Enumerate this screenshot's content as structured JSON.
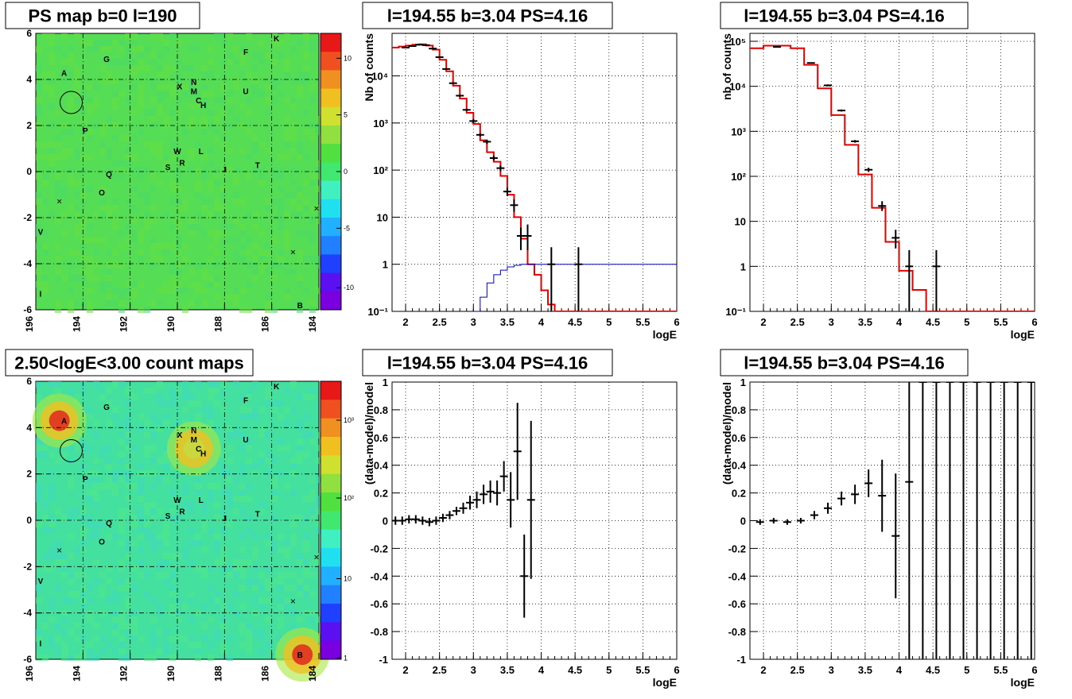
{
  "maps": [
    {
      "title": "PS map b=0 l=190",
      "xticks": [
        "196",
        "194",
        "192",
        "190",
        "188",
        "186",
        "184"
      ],
      "yticks": [
        "6",
        "4",
        "2",
        "0",
        "-2",
        "-4",
        "-6"
      ],
      "colorbar": {
        "type": "linear",
        "ticks": [
          "10",
          "5",
          "0",
          "-5",
          "-10"
        ]
      },
      "bg": "#55dd55",
      "sources": [
        {
          "name": "A",
          "l": 194.8,
          "b": 4.3
        },
        {
          "name": "G",
          "l": 193.0,
          "b": 4.9
        },
        {
          "name": "K",
          "l": 185.8,
          "b": 5.8
        },
        {
          "name": "F",
          "l": 187.1,
          "b": 5.2
        },
        {
          "name": "N",
          "l": 189.3,
          "b": 3.9
        },
        {
          "name": "X",
          "l": 189.9,
          "b": 3.7
        },
        {
          "name": "M",
          "l": 189.3,
          "b": 3.5
        },
        {
          "name": "C",
          "l": 189.1,
          "b": 3.1
        },
        {
          "name": "H",
          "l": 188.9,
          "b": 2.9
        },
        {
          "name": "U",
          "l": 187.1,
          "b": 3.5
        },
        {
          "name": "P",
          "l": 193.9,
          "b": 1.8
        },
        {
          "name": "W",
          "l": 190.0,
          "b": 0.9
        },
        {
          "name": "L",
          "l": 189.0,
          "b": 0.9
        },
        {
          "name": "R",
          "l": 189.8,
          "b": 0.4
        },
        {
          "name": "S",
          "l": 190.4,
          "b": 0.2
        },
        {
          "name": "J",
          "l": 188.0,
          "b": 0.1
        },
        {
          "name": "T",
          "l": 186.6,
          "b": 0.3
        },
        {
          "name": "Q",
          "l": 192.9,
          "b": -0.1
        },
        {
          "name": "O",
          "l": 193.2,
          "b": -0.9
        },
        {
          "name": "V",
          "l": 195.8,
          "b": -2.6
        },
        {
          "name": "I",
          "l": 195.8,
          "b": -5.3
        },
        {
          "name": "B",
          "l": 184.8,
          "b": -5.8
        }
      ],
      "circle": {
        "l": 194.5,
        "b": 3.0
      },
      "crosses": [
        {
          "l": 195.0,
          "b": -1.3
        },
        {
          "l": 184.1,
          "b": -1.6
        },
        {
          "l": 185.1,
          "b": -3.5
        }
      ]
    },
    {
      "title": "2.50<logE<3.00 count maps",
      "xticks": [
        "196",
        "194",
        "192",
        "190",
        "188",
        "186",
        "184"
      ],
      "yticks": [
        "6",
        "4",
        "2",
        "0",
        "-2",
        "-4",
        "-6"
      ],
      "colorbar": {
        "type": "log",
        "ticks": [
          "10³",
          "10²",
          "10",
          "1"
        ]
      },
      "bg": "#44e0a0",
      "sources": [
        {
          "name": "A",
          "l": 194.8,
          "b": 4.3
        },
        {
          "name": "G",
          "l": 193.0,
          "b": 4.9
        },
        {
          "name": "K",
          "l": 185.8,
          "b": 5.8
        },
        {
          "name": "F",
          "l": 187.1,
          "b": 5.2
        },
        {
          "name": "N",
          "l": 189.3,
          "b": 3.9
        },
        {
          "name": "X",
          "l": 189.9,
          "b": 3.7
        },
        {
          "name": "M",
          "l": 189.3,
          "b": 3.5
        },
        {
          "name": "C",
          "l": 189.1,
          "b": 3.1
        },
        {
          "name": "H",
          "l": 188.9,
          "b": 2.9
        },
        {
          "name": "U",
          "l": 187.1,
          "b": 3.5
        },
        {
          "name": "P",
          "l": 193.9,
          "b": 1.8
        },
        {
          "name": "W",
          "l": 190.0,
          "b": 0.9
        },
        {
          "name": "L",
          "l": 189.0,
          "b": 0.9
        },
        {
          "name": "R",
          "l": 189.8,
          "b": 0.4
        },
        {
          "name": "S",
          "l": 190.4,
          "b": 0.2
        },
        {
          "name": "J",
          "l": 188.0,
          "b": 0.1
        },
        {
          "name": "T",
          "l": 186.6,
          "b": 0.3
        },
        {
          "name": "Q",
          "l": 192.9,
          "b": -0.1
        },
        {
          "name": "O",
          "l": 193.2,
          "b": -0.9
        },
        {
          "name": "V",
          "l": 195.8,
          "b": -2.6
        },
        {
          "name": "I",
          "l": 195.8,
          "b": -5.3
        },
        {
          "name": "B",
          "l": 184.8,
          "b": -5.8
        }
      ],
      "circle": {
        "l": 194.5,
        "b": 3.0
      },
      "crosses": [
        {
          "l": 195.0,
          "b": -1.3
        },
        {
          "l": 184.1,
          "b": -1.6
        },
        {
          "l": 185.1,
          "b": -3.5
        }
      ],
      "hotspots": [
        {
          "l": 195.0,
          "b": 4.3,
          "color": "#e03020"
        },
        {
          "l": 189.3,
          "b": 3.1,
          "color": "#c8d840"
        },
        {
          "l": 184.7,
          "b": -5.8,
          "color": "#e03020"
        }
      ]
    }
  ],
  "chart_data": [
    {
      "type": "line",
      "title": "l=194.55 b=3.04 PS=4.16",
      "xlabel": "logE",
      "ylabel": "Nb of counts",
      "xlim": [
        1.8,
        6
      ],
      "ylim": [
        0.1,
        80000
      ],
      "yscale": "log",
      "xticks": [
        "2",
        "2.5",
        "3",
        "3.5",
        "4",
        "4.5",
        "5",
        "5.5",
        "6"
      ],
      "yticks": [
        {
          "v": 0.1,
          "t": "10⁻¹"
        },
        {
          "v": 1,
          "t": "1"
        },
        {
          "v": 10,
          "t": "10"
        },
        {
          "v": 100,
          "t": "10²"
        },
        {
          "v": 1000,
          "t": "10³"
        },
        {
          "v": 10000,
          "t": "10⁴"
        }
      ],
      "data": [
        {
          "x": 2.0,
          "y": 40000,
          "lo": 39000,
          "hi": 41000
        },
        {
          "x": 2.1,
          "y": 43000,
          "lo": 42000,
          "hi": 44000
        },
        {
          "x": 2.2,
          "y": 46000,
          "lo": 45000,
          "hi": 47000
        },
        {
          "x": 2.3,
          "y": 45000,
          "lo": 44000,
          "hi": 46000
        },
        {
          "x": 2.4,
          "y": 38000,
          "lo": 37000,
          "hi": 39000
        },
        {
          "x": 2.5,
          "y": 25000,
          "lo": 24000,
          "hi": 26000
        },
        {
          "x": 2.6,
          "y": 14000,
          "lo": 13500,
          "hi": 14500
        },
        {
          "x": 2.7,
          "y": 7000,
          "lo": 6700,
          "hi": 7300
        },
        {
          "x": 2.8,
          "y": 3800,
          "lo": 3600,
          "hi": 4000
        },
        {
          "x": 2.9,
          "y": 1900,
          "lo": 1800,
          "hi": 2000
        },
        {
          "x": 3.0,
          "y": 1100,
          "lo": 1000,
          "hi": 1200
        },
        {
          "x": 3.1,
          "y": 560,
          "lo": 520,
          "hi": 600
        },
        {
          "x": 3.2,
          "y": 400,
          "lo": 360,
          "hi": 440
        },
        {
          "x": 3.3,
          "y": 180,
          "lo": 160,
          "hi": 200
        },
        {
          "x": 3.4,
          "y": 110,
          "lo": 95,
          "hi": 125
        },
        {
          "x": 3.5,
          "y": 35,
          "lo": 28,
          "hi": 42
        },
        {
          "x": 3.6,
          "y": 18,
          "lo": 13,
          "hi": 24
        },
        {
          "x": 3.7,
          "y": 4,
          "lo": 2,
          "hi": 6
        },
        {
          "x": 3.8,
          "y": 4,
          "lo": 2,
          "hi": 7
        },
        {
          "x": 4.15,
          "y": 1,
          "lo": 0.1,
          "hi": 2.3
        },
        {
          "x": 4.55,
          "y": 1,
          "lo": 0.1,
          "hi": 2.3
        }
      ],
      "model_step": [
        {
          "x": 1.8,
          "y": 40000
        },
        {
          "x": 1.9,
          "y": 42000
        },
        {
          "x": 2.0,
          "y": 44000
        },
        {
          "x": 2.1,
          "y": 46000
        },
        {
          "x": 2.2,
          "y": 47000
        },
        {
          "x": 2.3,
          "y": 44000
        },
        {
          "x": 2.4,
          "y": 36000
        },
        {
          "x": 2.5,
          "y": 22000
        },
        {
          "x": 2.6,
          "y": 12500
        },
        {
          "x": 2.7,
          "y": 6200
        },
        {
          "x": 2.8,
          "y": 3300
        },
        {
          "x": 2.9,
          "y": 1650
        },
        {
          "x": 3.0,
          "y": 950
        },
        {
          "x": 3.1,
          "y": 430
        },
        {
          "x": 3.2,
          "y": 240
        },
        {
          "x": 3.3,
          "y": 150
        },
        {
          "x": 3.4,
          "y": 75
        },
        {
          "x": 3.5,
          "y": 30
        },
        {
          "x": 3.6,
          "y": 10
        },
        {
          "x": 3.7,
          "y": 3.5
        },
        {
          "x": 3.8,
          "y": 1.0
        },
        {
          "x": 3.9,
          "y": 0.6
        },
        {
          "x": 4.0,
          "y": 0.28
        },
        {
          "x": 4.1,
          "y": 0.14
        },
        {
          "x": 4.2,
          "y": 0.1
        }
      ],
      "bkg_step": [
        {
          "x": 3.0,
          "y": 0.1
        },
        {
          "x": 3.1,
          "y": 0.2
        },
        {
          "x": 3.2,
          "y": 0.4
        },
        {
          "x": 3.3,
          "y": 0.6
        },
        {
          "x": 3.4,
          "y": 0.75
        },
        {
          "x": 3.5,
          "y": 0.88
        },
        {
          "x": 3.6,
          "y": 0.95
        },
        {
          "x": 3.7,
          "y": 1.0
        }
      ]
    },
    {
      "type": "line",
      "title": "l=194.55 b=3.04 PS=4.16",
      "xlabel": "logE",
      "ylabel": "nb of counts",
      "xlim": [
        1.8,
        6
      ],
      "ylim": [
        0.1,
        150000
      ],
      "yscale": "log",
      "xticks": [
        "2",
        "2.5",
        "3",
        "3.5",
        "4",
        "4.5",
        "5",
        "5.5",
        "6"
      ],
      "yticks": [
        {
          "v": 0.1,
          "t": "10⁻¹"
        },
        {
          "v": 1,
          "t": "1"
        },
        {
          "v": 10,
          "t": "10"
        },
        {
          "v": 100,
          "t": "10²"
        },
        {
          "v": 1000,
          "t": "10³"
        },
        {
          "v": 10000,
          "t": "10⁴"
        },
        {
          "v": 100000,
          "t": "10⁵"
        }
      ],
      "data": [
        {
          "x": 2.2,
          "y": 75000,
          "lo": 74000,
          "hi": 76000
        },
        {
          "x": 2.7,
          "y": 33000,
          "lo": 32000,
          "hi": 34000
        },
        {
          "x": 2.95,
          "y": 10500,
          "lo": 10000,
          "hi": 11000
        },
        {
          "x": 3.15,
          "y": 2900,
          "lo": 2750,
          "hi": 3050
        },
        {
          "x": 3.35,
          "y": 600,
          "lo": 560,
          "hi": 640
        },
        {
          "x": 3.55,
          "y": 140,
          "lo": 125,
          "hi": 155
        },
        {
          "x": 3.75,
          "y": 22,
          "lo": 17,
          "hi": 28
        },
        {
          "x": 3.95,
          "y": 4.3,
          "lo": 2.5,
          "hi": 6.5
        },
        {
          "x": 4.15,
          "y": 1,
          "lo": 0.1,
          "hi": 2.3
        },
        {
          "x": 4.55,
          "y": 1,
          "lo": 0.1,
          "hi": 2.3
        }
      ],
      "model_step": [
        {
          "x": 1.8,
          "y": 70000
        },
        {
          "x": 2.0,
          "y": 80000
        },
        {
          "x": 2.4,
          "y": 70000
        },
        {
          "x": 2.6,
          "y": 30000
        },
        {
          "x": 2.8,
          "y": 9000
        },
        {
          "x": 3.0,
          "y": 2300
        },
        {
          "x": 3.2,
          "y": 500
        },
        {
          "x": 3.4,
          "y": 110
        },
        {
          "x": 3.6,
          "y": 20
        },
        {
          "x": 3.8,
          "y": 3.5
        },
        {
          "x": 4.0,
          "y": 0.8
        },
        {
          "x": 4.2,
          "y": 0.3
        },
        {
          "x": 4.4,
          "y": 0.1
        }
      ]
    },
    {
      "type": "scatter",
      "title": "l=194.55 b=3.04 PS=4.16",
      "xlabel": "logE",
      "ylabel": "(data-model)/model",
      "xlim": [
        1.8,
        6
      ],
      "ylim": [
        -1,
        1
      ],
      "xticks": [
        "2",
        "2.5",
        "3",
        "3.5",
        "4",
        "4.5",
        "5",
        "5.5",
        "6"
      ],
      "yticks": [
        "1",
        "0.8",
        "0.6",
        "0.4",
        "0.2",
        "0",
        "-0.2",
        "-0.4",
        "-0.6",
        "-0.8",
        "-1"
      ],
      "points": [
        {
          "x": 1.85,
          "y": 0.0,
          "e": 0.03
        },
        {
          "x": 1.95,
          "y": 0.0,
          "e": 0.03
        },
        {
          "x": 2.05,
          "y": 0.01,
          "e": 0.03
        },
        {
          "x": 2.15,
          "y": 0.01,
          "e": 0.03
        },
        {
          "x": 2.25,
          "y": 0.0,
          "e": 0.03
        },
        {
          "x": 2.35,
          "y": -0.01,
          "e": 0.03
        },
        {
          "x": 2.45,
          "y": 0.0,
          "e": 0.03
        },
        {
          "x": 2.55,
          "y": 0.02,
          "e": 0.03
        },
        {
          "x": 2.65,
          "y": 0.04,
          "e": 0.03
        },
        {
          "x": 2.75,
          "y": 0.07,
          "e": 0.03
        },
        {
          "x": 2.85,
          "y": 0.09,
          "e": 0.04
        },
        {
          "x": 2.95,
          "y": 0.13,
          "e": 0.05
        },
        {
          "x": 3.05,
          "y": 0.15,
          "e": 0.06
        },
        {
          "x": 3.15,
          "y": 0.19,
          "e": 0.07
        },
        {
          "x": 3.25,
          "y": 0.21,
          "e": 0.08
        },
        {
          "x": 3.35,
          "y": 0.2,
          "e": 0.09
        },
        {
          "x": 3.45,
          "y": 0.32,
          "e": 0.11
        },
        {
          "x": 3.55,
          "y": 0.15,
          "e": 0.2
        },
        {
          "x": 3.65,
          "y": 0.5,
          "e": 0.35
        },
        {
          "x": 3.75,
          "y": -0.4,
          "e": 0.3
        },
        {
          "x": 3.85,
          "y": 0.15,
          "e": 0.57
        }
      ]
    },
    {
      "type": "scatter",
      "title": "l=194.55 b=3.04 PS=4.16",
      "xlabel": "logE",
      "ylabel": "(data-model)/model",
      "xlim": [
        1.8,
        6
      ],
      "ylim": [
        -1,
        1
      ],
      "xticks": [
        "2",
        "2.5",
        "3",
        "3.5",
        "4",
        "4.5",
        "5",
        "5.5",
        "6"
      ],
      "yticks": [
        "1",
        "0.8",
        "0.6",
        "0.4",
        "0.2",
        "0",
        "-0.2",
        "-0.4",
        "-0.6",
        "-0.8",
        "-1"
      ],
      "points": [
        {
          "x": 1.95,
          "y": -0.01,
          "e": 0.02
        },
        {
          "x": 2.15,
          "y": 0.0,
          "e": 0.02
        },
        {
          "x": 2.35,
          "y": -0.01,
          "e": 0.02
        },
        {
          "x": 2.55,
          "y": 0.0,
          "e": 0.02
        },
        {
          "x": 2.75,
          "y": 0.04,
          "e": 0.03
        },
        {
          "x": 2.95,
          "y": 0.09,
          "e": 0.04
        },
        {
          "x": 3.15,
          "y": 0.16,
          "e": 0.05
        },
        {
          "x": 3.35,
          "y": 0.19,
          "e": 0.07
        },
        {
          "x": 3.55,
          "y": 0.27,
          "e": 0.1
        },
        {
          "x": 3.75,
          "y": 0.18,
          "e": 0.26
        },
        {
          "x": 3.95,
          "y": -0.11,
          "e": 0.45
        },
        {
          "x": 4.15,
          "y": 0.28,
          "e": 1.5
        },
        {
          "x": 4.35,
          "y": 1,
          "e": 2
        },
        {
          "x": 4.55,
          "y": 1,
          "e": 2
        },
        {
          "x": 4.75,
          "y": 1,
          "e": 2
        },
        {
          "x": 4.95,
          "y": 1,
          "e": 2
        },
        {
          "x": 5.15,
          "y": 1,
          "e": 2
        },
        {
          "x": 5.35,
          "y": 1,
          "e": 2
        },
        {
          "x": 5.55,
          "y": 1,
          "e": 2
        },
        {
          "x": 5.75,
          "y": 1,
          "e": 2
        },
        {
          "x": 5.95,
          "y": 1,
          "e": 2
        }
      ]
    }
  ]
}
